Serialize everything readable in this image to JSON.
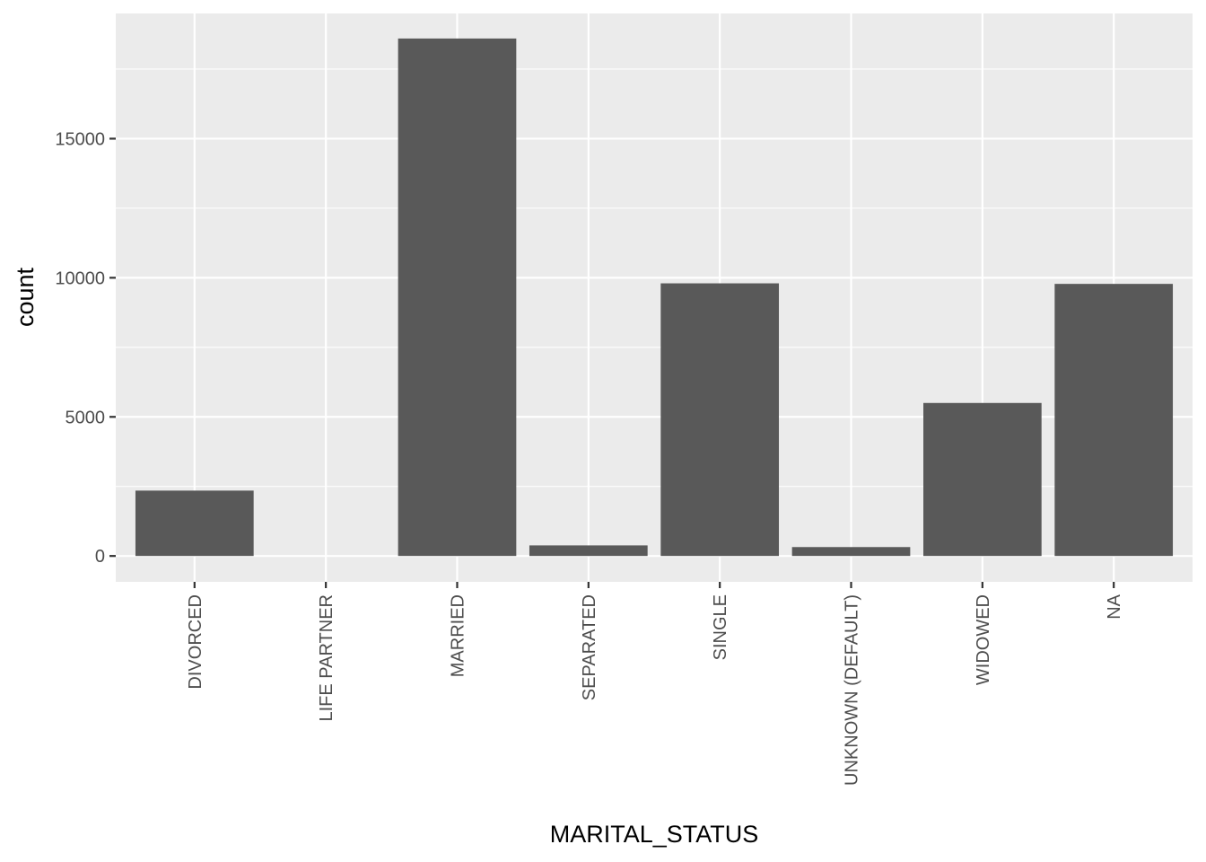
{
  "chart_data": {
    "type": "bar",
    "categories": [
      "DIVORCED",
      "LIFE PARTNER",
      "MARRIED",
      "SEPARATED",
      "SINGLE",
      "UNKNOWN (DEFAULT)",
      "WIDOWED",
      "NA"
    ],
    "values": [
      2350,
      0,
      18600,
      380,
      9800,
      320,
      5500,
      9780
    ],
    "xlabel": "MARITAL_STATUS",
    "ylabel": "count",
    "ylim": [
      -930,
      19500
    ],
    "yticks": [
      0,
      5000,
      10000,
      15000
    ],
    "ytick_labels": [
      "0",
      "5000",
      "10000",
      "15000"
    ],
    "grid": true,
    "colors": {
      "panel": "#ebebeb",
      "grid": "#ffffff",
      "bar": "#595959",
      "tick": "#333333"
    }
  }
}
